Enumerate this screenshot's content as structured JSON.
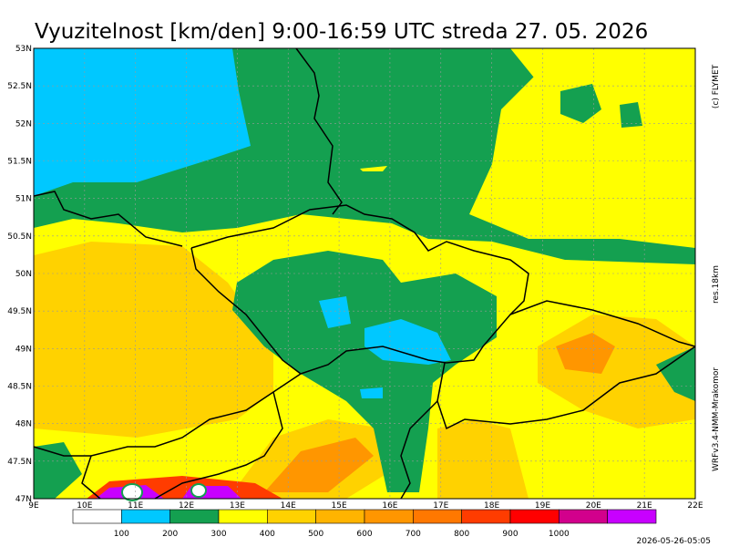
{
  "title": "Vyuzitelnost [km/den] 9:00-16:59 UTC  streda 27. 05. 2026",
  "side_labels": {
    "copyright": "(c) FLYMET",
    "resolution": "res.18km",
    "model": "WRFv3.4-NMM-Mrakomor"
  },
  "timestamp": "2026-05-26-05:05",
  "lat_labels": [
    "47N",
    "47.5N",
    "48N",
    "48.5N",
    "49N",
    "49.5N",
    "50N",
    "50.5N",
    "51N",
    "51.5N",
    "52N",
    "52.5N",
    "53N"
  ],
  "lon_labels": [
    "9E",
    "10E",
    "11E",
    "12E",
    "13E",
    "14E",
    "15E",
    "16E",
    "17E",
    "18E",
    "19E",
    "20E",
    "21E",
    "22E"
  ],
  "colorbar": {
    "labels": [
      "100",
      "200",
      "300",
      "400",
      "500",
      "600",
      "700",
      "800",
      "900",
      "1000"
    ],
    "colors": [
      "#ffffff",
      "#00c8ff",
      "#14a050",
      "#ffff00",
      "#ffd200",
      "#ffb400",
      "#ff9600",
      "#ff7800",
      "#ff3c00",
      "#ff0000",
      "#d2008c",
      "#c800ff"
    ]
  }
}
